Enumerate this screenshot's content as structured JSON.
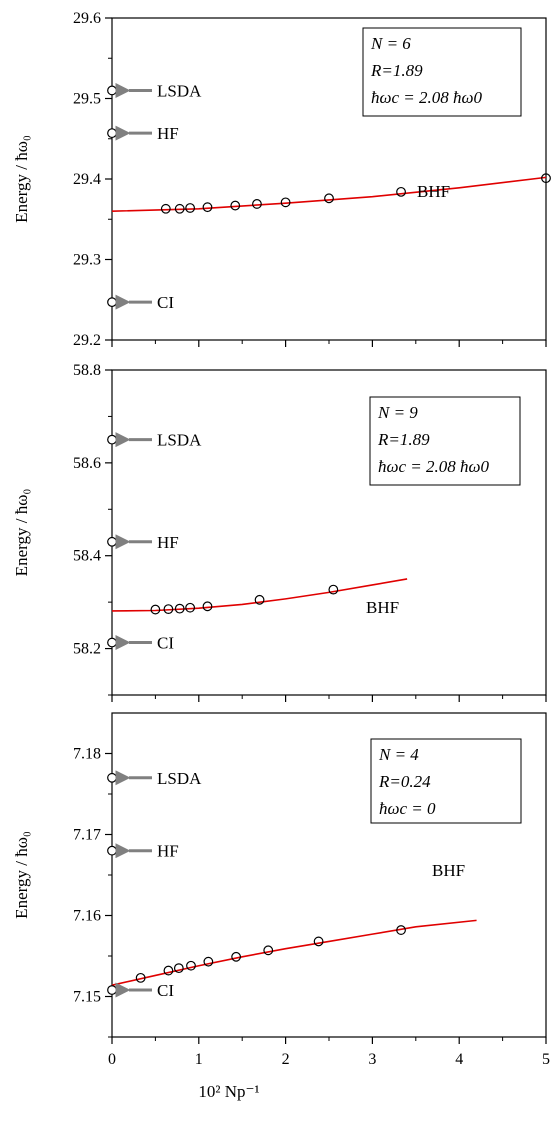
{
  "chart_data": [
    {
      "type": "scatter",
      "ylabel": "Energy / ħω₀",
      "xlim": [
        0,
        5
      ],
      "ylim": [
        29.2,
        29.6
      ],
      "xticks": [
        "0",
        "1",
        "2",
        "3",
        "4",
        "5"
      ],
      "yticks": [
        "29.2",
        "29.3",
        "29.4",
        "29.5",
        "29.6"
      ],
      "info": [
        "N = 6",
        "R=1.89",
        "ħωc = 2.08 ħω0"
      ],
      "methods": [
        {
          "name": "LSDA",
          "value": 29.51
        },
        {
          "name": "HF",
          "value": 29.457
        },
        {
          "name": "CI",
          "value": 29.247
        }
      ],
      "bhf": {
        "label": "BHF",
        "x": [
          0.62,
          0.78,
          0.9,
          1.1,
          1.42,
          1.67,
          2.0,
          2.5,
          3.33,
          5.0
        ],
        "y": [
          29.363,
          29.363,
          29.364,
          29.365,
          29.367,
          29.369,
          29.371,
          29.376,
          29.384,
          29.401
        ]
      },
      "fit": {
        "x": [
          0,
          1,
          2,
          3,
          4,
          5
        ],
        "y": [
          29.36,
          29.363,
          29.37,
          29.378,
          29.389,
          29.402
        ]
      }
    },
    {
      "type": "scatter",
      "ylabel": "Energy / ħω₀",
      "xlim": [
        0,
        5
      ],
      "ylim": [
        58.1,
        58.8
      ],
      "xticks": [
        "0",
        "1",
        "2",
        "3",
        "4",
        "5"
      ],
      "yticks": [
        "58.2",
        "58.4",
        "58.6",
        "58.8"
      ],
      "info": [
        "N = 9",
        "R=1.89",
        "ħωc = 2.08 ħω0"
      ],
      "methods": [
        {
          "name": "LSDA",
          "value": 58.65
        },
        {
          "name": "HF",
          "value": 58.43
        },
        {
          "name": "CI",
          "value": 58.213
        }
      ],
      "bhf": {
        "label": "BHF",
        "x": [
          0.5,
          0.65,
          0.78,
          0.9,
          1.1,
          1.7,
          2.55
        ],
        "y": [
          58.284,
          58.285,
          58.286,
          58.288,
          58.291,
          58.305,
          58.327
        ]
      },
      "fit": {
        "x": [
          0,
          0.5,
          1,
          1.5,
          2,
          2.5,
          3,
          3.4
        ],
        "y": [
          58.281,
          58.282,
          58.287,
          58.295,
          58.307,
          58.321,
          58.337,
          58.35
        ]
      }
    },
    {
      "type": "scatter",
      "xlabel": "10² Np⁻¹",
      "ylabel": "Energy / ħω₀",
      "xlim": [
        0,
        5
      ],
      "ylim": [
        7.145,
        7.185
      ],
      "xticks": [
        "0",
        "1",
        "2",
        "3",
        "4",
        "5"
      ],
      "yticks": [
        "7.15",
        "7.16",
        "7.17",
        "7.18"
      ],
      "info": [
        "N = 4",
        "R=0.24",
        "ħωc = 0"
      ],
      "methods": [
        {
          "name": "LSDA",
          "value": 7.177
        },
        {
          "name": "HF",
          "value": 7.168
        },
        {
          "name": "CI",
          "value": 7.1508
        }
      ],
      "bhf": {
        "label": "BHF",
        "x": [
          0.33,
          0.65,
          0.77,
          0.91,
          1.11,
          1.43,
          1.8,
          2.38,
          3.33
        ],
        "y": [
          7.1523,
          7.1532,
          7.1535,
          7.1538,
          7.1543,
          7.1549,
          7.1557,
          7.1568,
          7.1582
        ]
      },
      "fit": {
        "x": [
          0,
          0.5,
          1,
          1.5,
          2,
          2.5,
          3,
          3.5,
          4.2
        ],
        "y": [
          7.1514,
          7.1526,
          7.1538,
          7.1549,
          7.1559,
          7.1568,
          7.1577,
          7.1586,
          7.1594
        ]
      }
    }
  ]
}
